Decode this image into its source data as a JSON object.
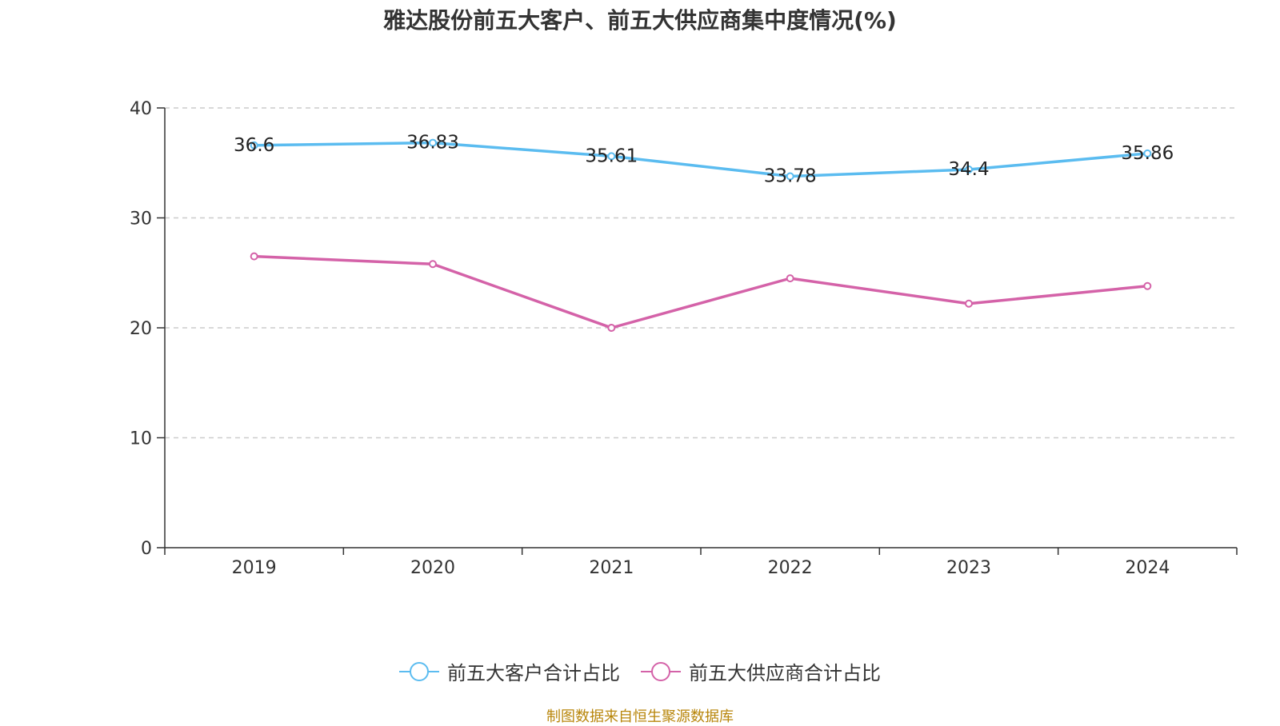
{
  "chart_data": {
    "type": "line",
    "title": "雅达股份前五大客户、前五大供应商集中度情况(%)",
    "categories": [
      "2019",
      "2020",
      "2021",
      "2022",
      "2023",
      "2024"
    ],
    "ylim": [
      0,
      40
    ],
    "yticks": [
      "0",
      "10",
      "20",
      "30",
      "40"
    ],
    "grid": true,
    "legend_position": "bottom",
    "series": [
      {
        "name": "前五大客户合计占比",
        "color": "#5bbcf0",
        "values": [
          36.6,
          36.83,
          35.61,
          33.78,
          34.4,
          35.86
        ],
        "data_labels": [
          "36.6",
          "36.83",
          "35.61",
          "33.78",
          "34.4",
          "35.86"
        ]
      },
      {
        "name": "前五大供应商合计占比",
        "color": "#d462a8",
        "values": [
          26.5,
          25.8,
          20.0,
          24.5,
          22.2,
          23.8
        ]
      }
    ]
  },
  "source_text": "制图数据来自恒生聚源数据库"
}
